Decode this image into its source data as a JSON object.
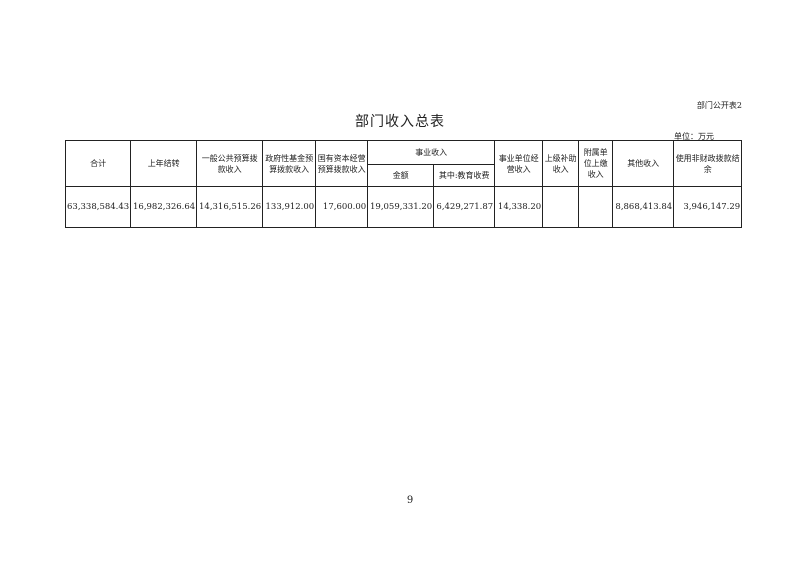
{
  "form_no": "部门公开表2",
  "title": "部门收入总表",
  "unit": "单位：万元",
  "table": {
    "headers": {
      "total": "合计",
      "carryover": "上年结转",
      "general_budget": "一般公共预算拨款收入",
      "gov_fund": "政府性基金预算拨款收入",
      "state_capital": "国有资本经营预算拨款收入",
      "business_income": "事业收入",
      "business_amount": "金额",
      "business_edu_fee": "其中:教育收费",
      "unit_operating": "事业单位经营收入",
      "superior_subsidy": "上级补助收入",
      "affiliated_payment": "附属单位上缴收入",
      "other_income": "其他收入",
      "non_fiscal_balance": "使用非财政拨款结余"
    },
    "row": {
      "total": "63,338,584.43",
      "carryover": "16,982,326.64",
      "general_budget": "14,316,515.26",
      "gov_fund": "133,912.00",
      "state_capital": "17,600.00",
      "business_amount": "19,059,331.20",
      "business_edu_fee": "6,429,271.87",
      "unit_operating": "14,338.20",
      "superior_subsidy": "",
      "affiliated_payment": "",
      "other_income": "8,868,413.84",
      "non_fiscal_balance": "3,946,147.29"
    }
  },
  "page_number": "9"
}
